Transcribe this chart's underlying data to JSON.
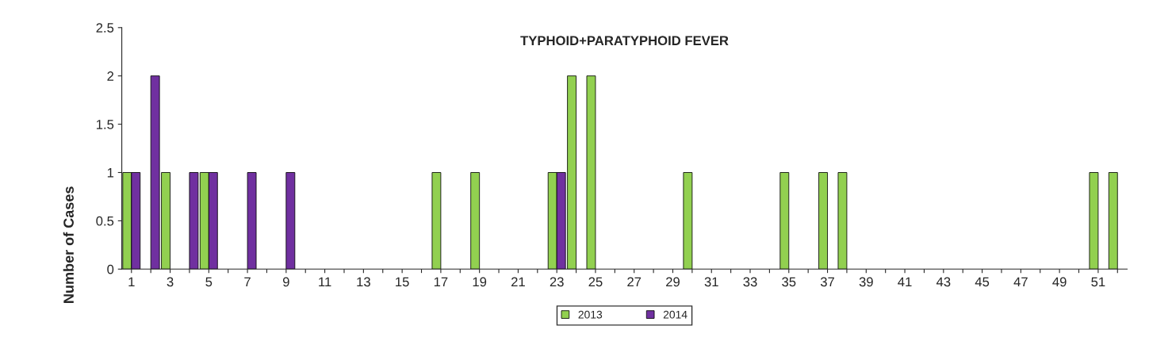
{
  "chart_data": {
    "type": "bar",
    "title": "TYPHOID+PARATYPHOID FEVER",
    "ylabel": "Number of Cases",
    "categories": [
      "1",
      null,
      "3",
      null,
      "5",
      null,
      "7",
      null,
      "9",
      null,
      "11",
      null,
      "13",
      null,
      "15",
      null,
      "17",
      null,
      "19",
      null,
      "21",
      null,
      "23",
      null,
      "25",
      null,
      "27",
      null,
      "29",
      null,
      "31",
      null,
      "33",
      null,
      "35",
      null,
      "37",
      null,
      "39",
      null,
      "41",
      null,
      "43",
      null,
      "45",
      null,
      "47",
      null,
      "49",
      null,
      "51",
      null
    ],
    "series": [
      {
        "name": "2013",
        "color": "#92d050",
        "values": [
          1,
          0,
          1,
          0,
          1,
          0,
          0,
          0,
          0,
          0,
          0,
          0,
          0,
          0,
          0,
          0,
          1,
          0,
          1,
          0,
          0,
          0,
          1,
          2,
          2,
          0,
          0,
          0,
          0,
          1,
          0,
          0,
          0,
          0,
          1,
          0,
          1,
          1,
          0,
          0,
          0,
          0,
          0,
          0,
          0,
          0,
          0,
          0,
          0,
          0,
          1,
          1
        ]
      },
      {
        "name": "2014",
        "color": "#7030a0",
        "values": [
          1,
          2,
          0,
          1,
          1,
          0,
          1,
          0,
          1,
          0,
          0,
          0,
          0,
          0,
          0,
          0,
          0,
          0,
          0,
          0,
          0,
          0,
          1,
          0,
          0,
          0,
          0,
          0,
          0,
          0,
          0,
          0,
          0,
          0,
          0,
          0,
          0,
          0,
          0,
          0,
          0,
          0,
          0,
          0,
          0,
          0,
          0,
          0,
          0,
          0,
          0,
          0
        ]
      }
    ],
    "ylim": [
      0,
      2.5
    ],
    "yticks": [
      0,
      0.5,
      1,
      1.5,
      2,
      2.5
    ],
    "grid": false,
    "legend": "bottom"
  }
}
